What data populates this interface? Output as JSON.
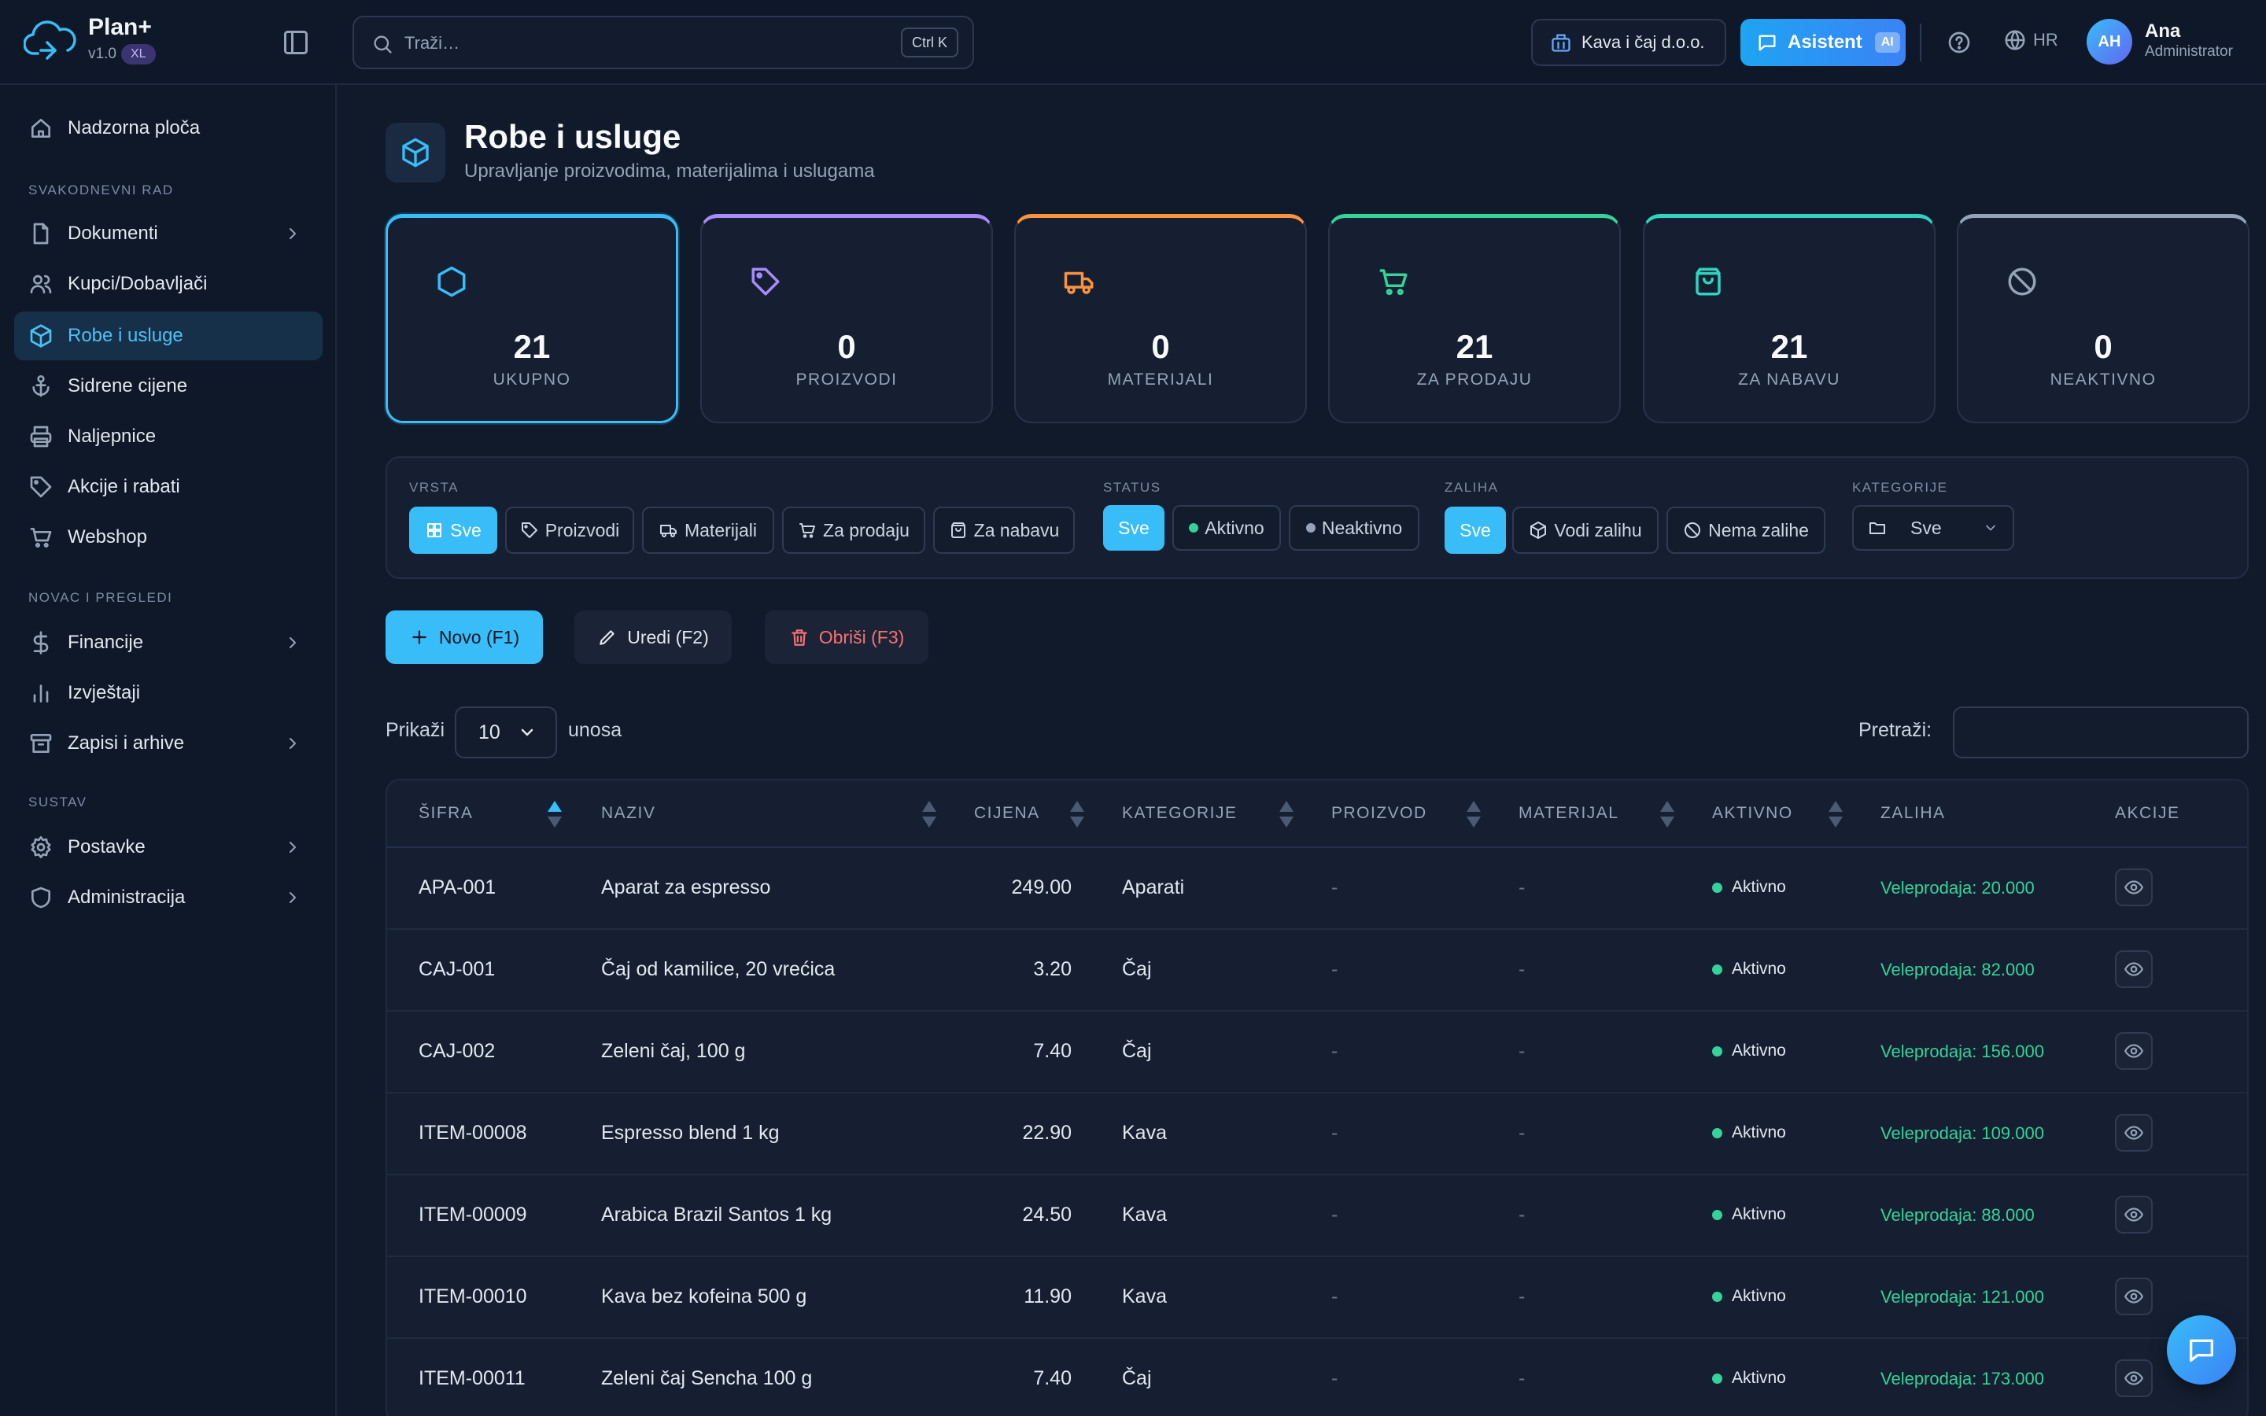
{
  "app": {
    "name": "Plan+",
    "version": "v1.0",
    "badge": "XL"
  },
  "topbar": {
    "search_placeholder": "Traži…",
    "search_shortcut": "Ctrl K",
    "company": "Kava i čaj d.o.o.",
    "assistant_label": "Asistent",
    "assistant_badge": "AI",
    "language": "HR",
    "user": {
      "initials": "AH",
      "name": "Ana",
      "role": "Administrator"
    }
  },
  "sidebar": {
    "items": [
      {
        "label": "Nadzorna ploča",
        "icon": "home-icon"
      },
      {
        "label": "Dokumenti",
        "icon": "document-icon",
        "expandable": true
      },
      {
        "label": "Kupci/Dobavljači",
        "icon": "users-icon"
      },
      {
        "label": "Robe i usluge",
        "icon": "cube-icon",
        "active": true
      },
      {
        "label": "Sidrene cijene",
        "icon": "anchor-icon"
      },
      {
        "label": "Naljepnice",
        "icon": "printer-icon"
      },
      {
        "label": "Akcije i rabati",
        "icon": "tag-icon"
      },
      {
        "label": "Webshop",
        "icon": "cart-icon"
      },
      {
        "label": "Financije",
        "icon": "dollar-icon",
        "expandable": true
      },
      {
        "label": "Izvještaji",
        "icon": "bar-chart-icon"
      },
      {
        "label": "Zapisi i arhive",
        "icon": "archive-icon",
        "expandable": true
      },
      {
        "label": "Postavke",
        "icon": "gear-icon",
        "expandable": true
      },
      {
        "label": "Administracija",
        "icon": "shield-icon",
        "expandable": true
      }
    ],
    "sections": [
      "SVAKODNEVNI RAD",
      "NOVAC I PREGLEDI",
      "SUSTAV"
    ]
  },
  "page": {
    "title": "Robe i usluge",
    "subtitle": "Upravljanje proizvodima, materijalima i uslugama"
  },
  "stats": [
    {
      "value": "21",
      "label": "UKUPNO",
      "color": "#38bdf8",
      "icon": "hexagon-icon"
    },
    {
      "value": "0",
      "label": "PROIZVODI",
      "color": "#a78bfa",
      "icon": "tag-icon"
    },
    {
      "value": "0",
      "label": "MATERIJALI",
      "color": "#fb923c",
      "icon": "truck-icon"
    },
    {
      "value": "21",
      "label": "ZA PRODAJU",
      "color": "#34d399",
      "icon": "cart-icon"
    },
    {
      "value": "21",
      "label": "ZA NABAVU",
      "color": "#2dd4bf",
      "icon": "shopping-bag-icon"
    },
    {
      "value": "0",
      "label": "NEAKTIVNO",
      "color": "#94a3b8",
      "icon": "ban-icon"
    }
  ],
  "filters": {
    "vrsta": {
      "label": "VRSTA",
      "options": [
        "Sve",
        "Proizvodi",
        "Materijali",
        "Za prodaju",
        "Za nabavu"
      ],
      "selected": "Sve"
    },
    "status": {
      "label": "STATUS",
      "options": [
        "Sve",
        "Aktivno",
        "Neaktivno"
      ],
      "selected": "Sve"
    },
    "zaliha": {
      "label": "ZALIHA",
      "options": [
        "Sve",
        "Vodi zalihu",
        "Nema zalihe"
      ],
      "selected": "Sve"
    },
    "kategorije": {
      "label": "KATEGORIJE",
      "value": "Sve"
    }
  },
  "actions": {
    "new": "Novo (F1)",
    "edit": "Uredi (F2)",
    "delete": "Obriši (F3)"
  },
  "table_controls": {
    "show_label": "Prikaži",
    "page_size": "10",
    "entries_label": "unosa",
    "search_label": "Pretraži:",
    "search_value": ""
  },
  "table": {
    "columns": [
      "ŠIFRA",
      "NAZIV",
      "CIJENA",
      "KATEGORIJE",
      "PROIZVOD",
      "MATERIJAL",
      "AKTIVNO",
      "ZALIHA",
      "AKCIJE"
    ],
    "rows": [
      {
        "sifra": "APA-001",
        "naziv": "Aparat za espresso",
        "cijena": "249.00",
        "kategorija": "Aparati",
        "proizvod": "-",
        "materijal": "-",
        "aktivno": "Aktivno",
        "zaliha": "Veleprodaja: 20.000"
      },
      {
        "sifra": "CAJ-001",
        "naziv": "Čaj od kamilice, 20 vrećica",
        "cijena": "3.20",
        "kategorija": "Čaj",
        "proizvod": "-",
        "materijal": "-",
        "aktivno": "Aktivno",
        "zaliha": "Veleprodaja: 82.000"
      },
      {
        "sifra": "CAJ-002",
        "naziv": "Zeleni čaj, 100 g",
        "cijena": "7.40",
        "kategorija": "Čaj",
        "proizvod": "-",
        "materijal": "-",
        "aktivno": "Aktivno",
        "zaliha": "Veleprodaja: 156.000"
      },
      {
        "sifra": "ITEM-00008",
        "naziv": "Espresso blend 1 kg",
        "cijena": "22.90",
        "kategorija": "Kava",
        "proizvod": "-",
        "materijal": "-",
        "aktivno": "Aktivno",
        "zaliha": "Veleprodaja: 109.000"
      },
      {
        "sifra": "ITEM-00009",
        "naziv": "Arabica Brazil Santos 1 kg",
        "cijena": "24.50",
        "kategorija": "Kava",
        "proizvod": "-",
        "materijal": "-",
        "aktivno": "Aktivno",
        "zaliha": "Veleprodaja: 88.000"
      },
      {
        "sifra": "ITEM-00010",
        "naziv": "Kava bez kofeina 500 g",
        "cijena": "11.90",
        "kategorija": "Kava",
        "proizvod": "-",
        "materijal": "-",
        "aktivno": "Aktivno",
        "zaliha": "Veleprodaja: 121.000"
      },
      {
        "sifra": "ITEM-00011",
        "naziv": "Zeleni čaj Sencha 100 g",
        "cijena": "7.40",
        "kategorija": "Čaj",
        "proizvod": "-",
        "materijal": "-",
        "aktivno": "Aktivno",
        "zaliha": "Veleprodaja: 173.000"
      }
    ]
  }
}
